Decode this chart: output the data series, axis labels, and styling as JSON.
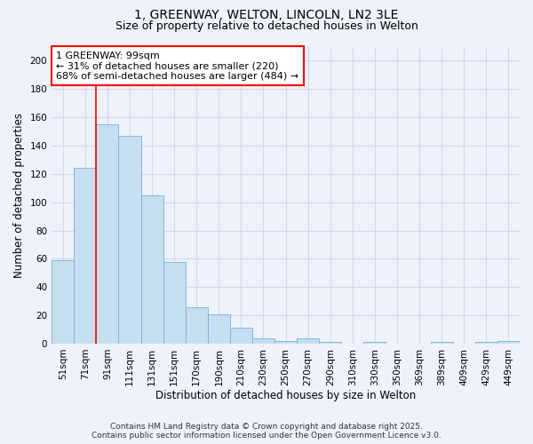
{
  "title": "1, GREENWAY, WELTON, LINCOLN, LN2 3LE",
  "subtitle": "Size of property relative to detached houses in Welton",
  "xlabel": "Distribution of detached houses by size in Welton",
  "ylabel": "Number of detached properties",
  "categories": [
    "51sqm",
    "71sqm",
    "91sqm",
    "111sqm",
    "131sqm",
    "151sqm",
    "170sqm",
    "190sqm",
    "210sqm",
    "230sqm",
    "250sqm",
    "270sqm",
    "290sqm",
    "310sqm",
    "330sqm",
    "350sqm",
    "369sqm",
    "389sqm",
    "409sqm",
    "429sqm",
    "449sqm"
  ],
  "values": [
    59,
    124,
    155,
    147,
    105,
    58,
    26,
    21,
    11,
    4,
    2,
    4,
    1,
    0,
    1,
    0,
    0,
    1,
    0,
    1,
    2
  ],
  "bar_color": "#c5dff0",
  "bar_edge_color": "#7aaed4",
  "background_color": "#eef2fa",
  "grid_color": "#d0d8ee",
  "ylim": [
    0,
    210
  ],
  "yticks": [
    0,
    20,
    40,
    60,
    80,
    100,
    120,
    140,
    160,
    180,
    200
  ],
  "red_line_x": 1.5,
  "annotation_text_line1": "1 GREENWAY: 99sqm",
  "annotation_text_line2": "← 31% of detached houses are smaller (220)",
  "annotation_text_line3": "68% of semi-detached houses are larger (484) →",
  "footer_line1": "Contains HM Land Registry data © Crown copyright and database right 2025.",
  "footer_line2": "Contains public sector information licensed under the Open Government Licence v3.0.",
  "title_fontsize": 10,
  "subtitle_fontsize": 9,
  "axis_label_fontsize": 8.5,
  "tick_fontsize": 7.5,
  "annotation_fontsize": 8,
  "footer_fontsize": 6.5
}
